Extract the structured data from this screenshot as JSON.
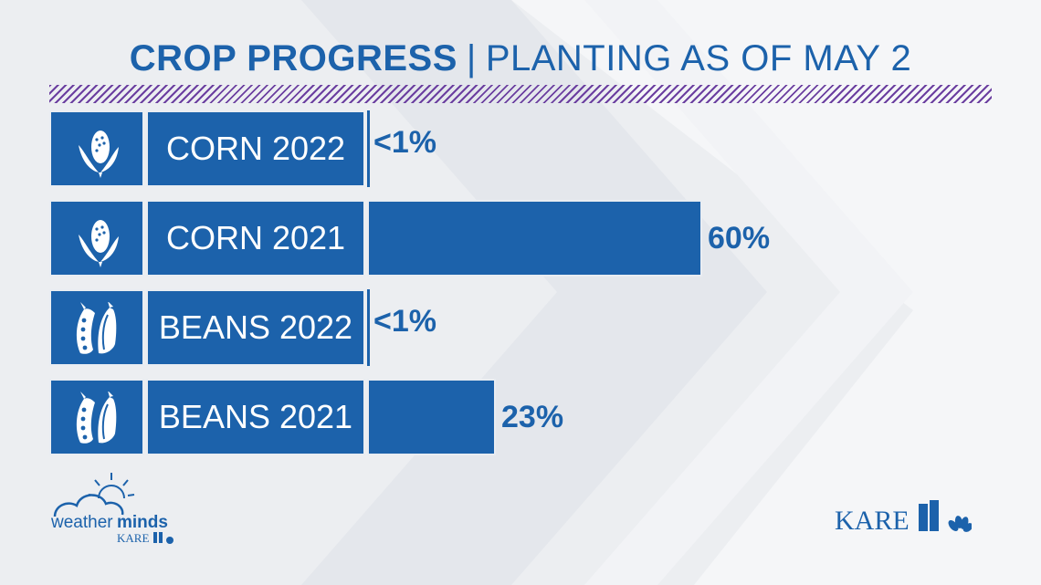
{
  "title": {
    "main": "CROP PROGRESS",
    "separator": "|",
    "sub": "PLANTING AS OF MAY 2"
  },
  "colors": {
    "bar": "#1c62ab",
    "accent_stripe": "#6b3fa0",
    "background": "#eceef1"
  },
  "chart_data": {
    "type": "bar",
    "orientation": "horizontal",
    "title": "CROP PROGRESS | PLANTING AS OF MAY 2",
    "categories": [
      "CORN 2022",
      "CORN 2021",
      "BEANS 2022",
      "BEANS 2021"
    ],
    "values": [
      0.5,
      60,
      0.5,
      23
    ],
    "data_labels": [
      "<1%",
      "60%",
      "<1%",
      "23%"
    ],
    "icons": [
      "corn-icon",
      "corn-icon",
      "bean-icon",
      "bean-icon"
    ],
    "xlim": [
      0,
      100
    ],
    "unit": "%",
    "grid": false,
    "legend": "none"
  },
  "logos": {
    "weather": {
      "word1": "weather",
      "word2": "minds",
      "station": "KARE"
    },
    "station": {
      "text": "KARE",
      "number": "11"
    }
  }
}
